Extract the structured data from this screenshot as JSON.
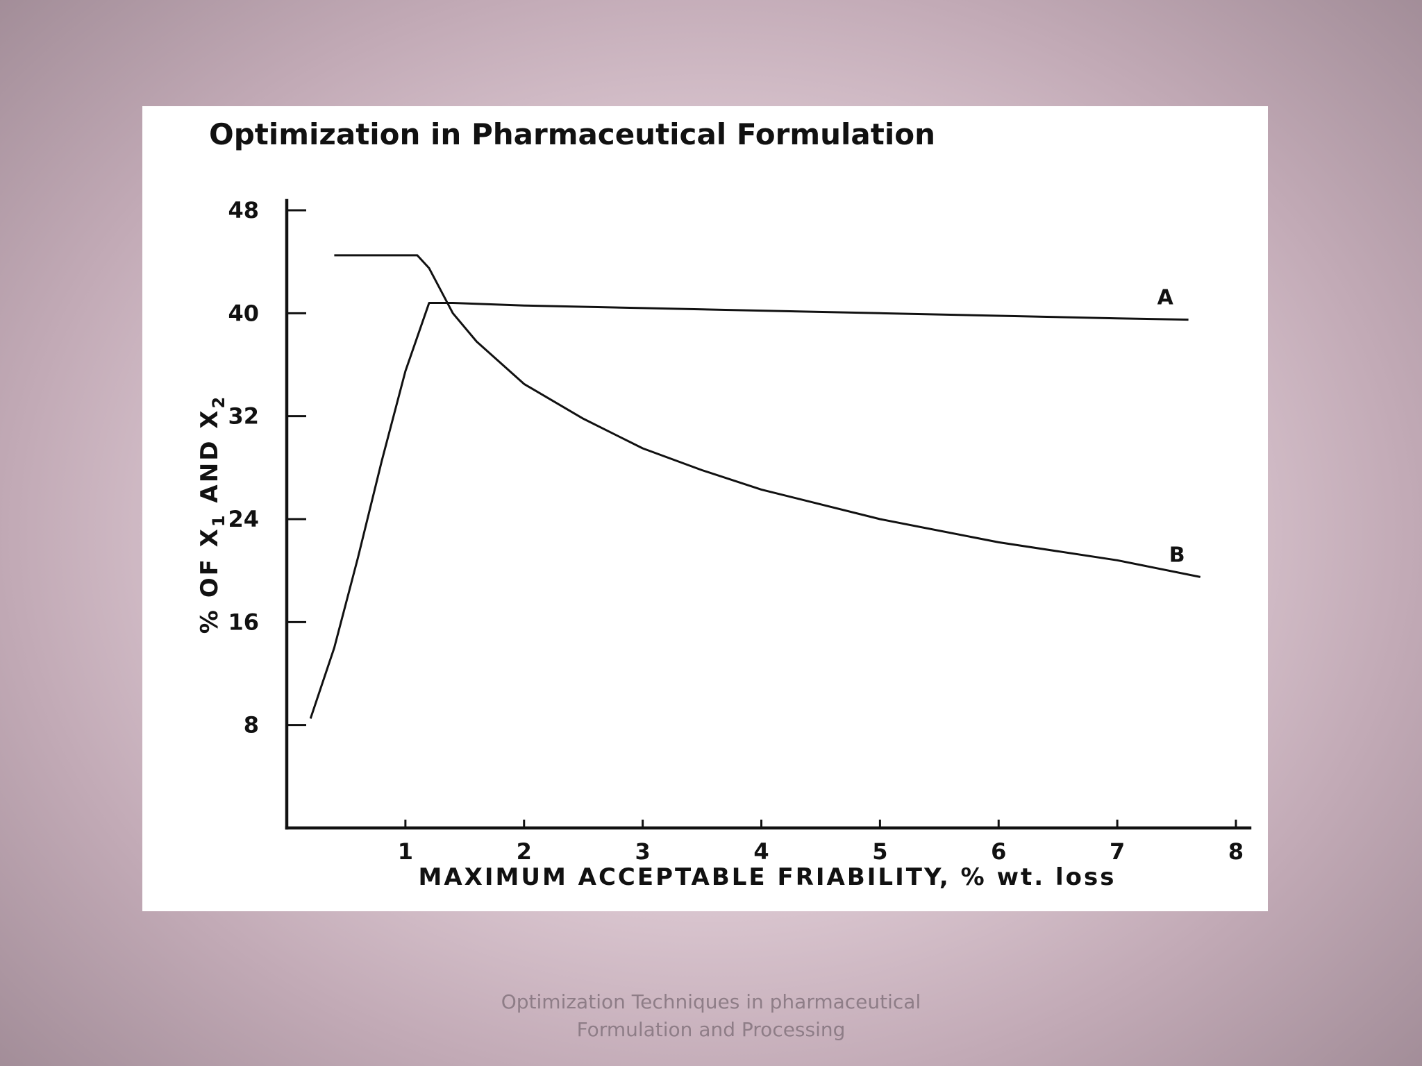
{
  "footer": {
    "line1": "Optimization Techniques in pharmaceutical",
    "line2": "Formulation and Processing"
  },
  "chart_data": {
    "type": "line",
    "title": "Optimization in Pharmaceutical Formulation",
    "xlabel": "MAXIMUM ACCEPTABLE FRIABILITY, % wt. loss",
    "ylabel_parts": [
      "% OF X",
      "1",
      " AND X",
      "2"
    ],
    "xlim": [
      0,
      8
    ],
    "ylim": [
      0,
      48
    ],
    "xticks": [
      1,
      2,
      3,
      4,
      5,
      6,
      7,
      8
    ],
    "yticks": [
      8,
      16,
      24,
      32,
      40,
      48
    ],
    "grid": false,
    "series": [
      {
        "name": "A",
        "x": [
          0.2,
          0.4,
          0.6,
          0.8,
          1.0,
          1.2,
          1.4,
          2.0,
          3.0,
          4.0,
          5.0,
          6.0,
          7.0,
          7.6
        ],
        "y": [
          8.5,
          14.0,
          21.0,
          28.5,
          35.5,
          40.8,
          40.8,
          40.6,
          40.4,
          40.2,
          40.0,
          39.8,
          39.6,
          39.5
        ]
      },
      {
        "name": "B",
        "x": [
          0.4,
          1.0,
          1.1,
          1.2,
          1.4,
          1.6,
          2.0,
          2.5,
          3.0,
          3.5,
          4.0,
          5.0,
          6.0,
          7.0,
          7.7
        ],
        "y": [
          44.5,
          44.5,
          44.5,
          43.5,
          40.0,
          37.8,
          34.5,
          31.8,
          29.5,
          27.8,
          26.3,
          24.0,
          22.2,
          20.8,
          19.5
        ]
      }
    ]
  }
}
